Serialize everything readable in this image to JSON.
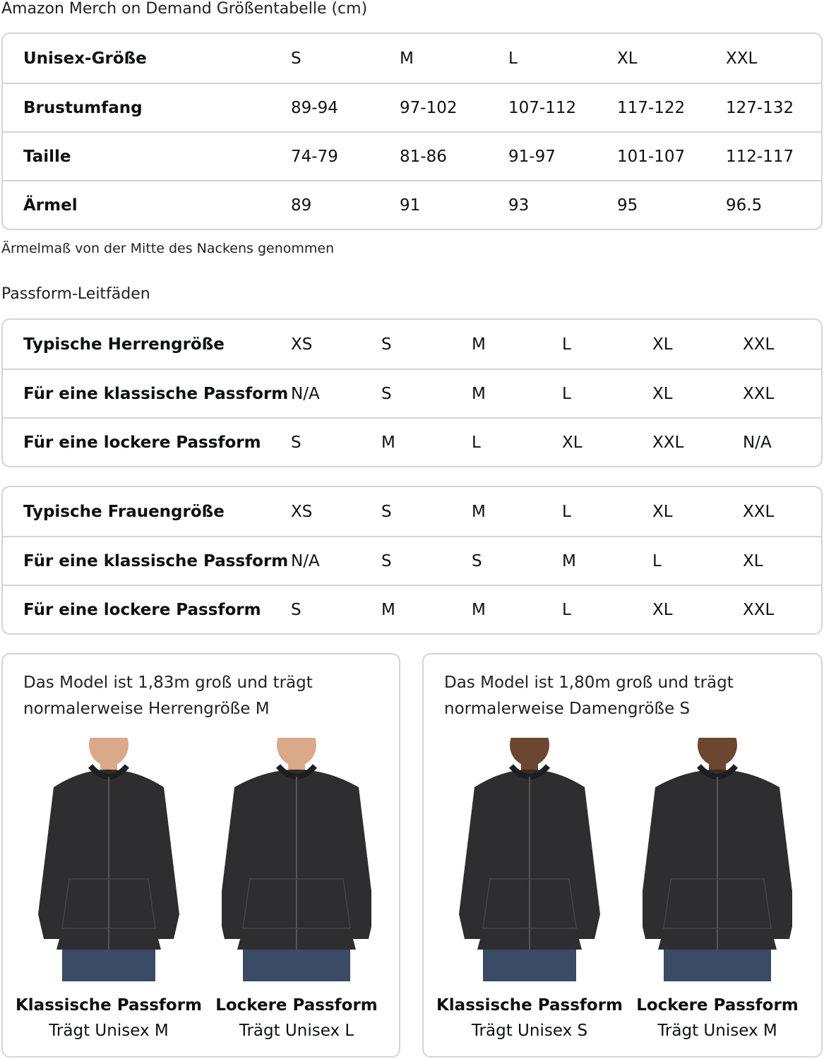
{
  "title": "Amazon Merch on Demand Größentabelle (cm)",
  "note": "Ärmelmaß von der Mitte des Nackens genommen",
  "subtitle": "Passform-Leitfäden",
  "size_table": [
    [
      "Unisex-Größe",
      "S",
      "M",
      "L",
      "XL",
      "XXL"
    ],
    [
      "Brustumfang",
      "89-94",
      "97-102",
      "107-112",
      "117-122",
      "127-132"
    ],
    [
      "Taille",
      "74-79",
      "81-86",
      "91-97",
      "101-107",
      "112-117"
    ],
    [
      "Ärmel",
      "89",
      "91",
      "93",
      "95",
      "96.5"
    ]
  ],
  "men_table": [
    [
      "Typische Herrengröße",
      "XS",
      "S",
      "M",
      "L",
      "XL",
      "XXL"
    ],
    [
      "Für eine klassische Passform",
      "N/A",
      "S",
      "M",
      "L",
      "XL",
      "XXL"
    ],
    [
      "Für eine lockere Passform",
      "S",
      "M",
      "L",
      "XL",
      "XXL",
      "N/A"
    ]
  ],
  "women_table": [
    [
      "Typische Frauengröße",
      "XS",
      "S",
      "M",
      "L",
      "XL",
      "XXL"
    ],
    [
      "Für eine klassische Passform",
      "N/A",
      "S",
      "S",
      "M",
      "L",
      "XL"
    ],
    [
      "Für eine lockere Passform",
      "S",
      "M",
      "M",
      "L",
      "XL",
      "XXL"
    ]
  ],
  "cards": [
    {
      "text": "Das Model ist 1,83m groß und trägt normalerweise Herrengröße M",
      "photos": [
        {
          "fit": "Klassische Passform",
          "wears": "Trägt Unisex M",
          "skin": "#d9a98a"
        },
        {
          "fit": "Lockere Passform",
          "wears": "Trägt Unisex L",
          "skin": "#d9a98a"
        }
      ]
    },
    {
      "text": "Das Model ist 1,80m groß und trägt normalerweise Damengröße S",
      "photos": [
        {
          "fit": "Klassische Passform",
          "wears": "Trägt Unisex S",
          "skin": "#6b4630"
        },
        {
          "fit": "Lockere Passform",
          "wears": "Trägt Unisex M",
          "skin": "#6b4630"
        }
      ]
    }
  ],
  "colors": {
    "border": "#d5d5d5",
    "hoodie": "#2e2e30",
    "jeans": "#3b4b66"
  }
}
